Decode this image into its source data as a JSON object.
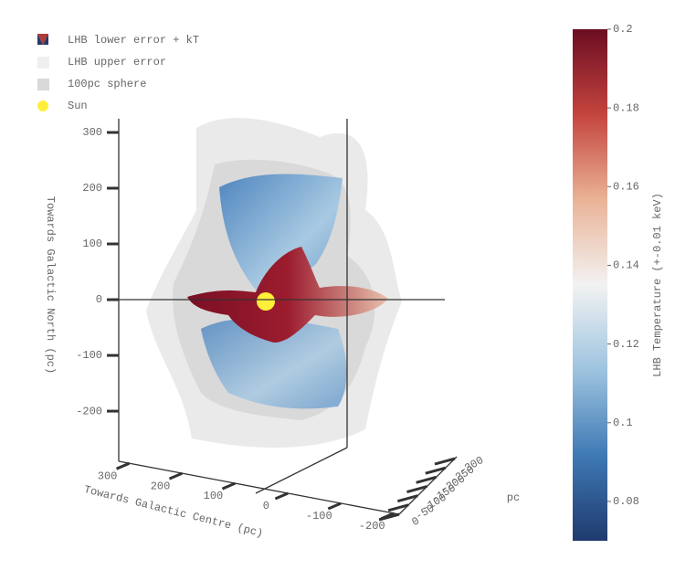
{
  "chart_data": {
    "type": "surface3d",
    "legend": [
      {
        "name": "LHB lower error + kT"
      },
      {
        "name": "LHB upper error"
      },
      {
        "name": "100pc sphere"
      },
      {
        "name": "Sun",
        "color": "#ffef3a"
      }
    ],
    "zaxis": {
      "title": "Towards Galactic North (pc)",
      "lim": [
        -290,
        300
      ],
      "ticks": [
        -200,
        -100,
        0,
        100,
        200,
        300
      ]
    },
    "xaxis": {
      "title": "Towards Galactic Centre (pc)",
      "lim": [
        320,
        -210
      ],
      "ticks": [
        300,
        200,
        100,
        0,
        -100,
        -200
      ]
    },
    "yaxis": {
      "title": "pc",
      "lim": [
        0,
        -310
      ],
      "ticks": [
        0,
        -50,
        -100,
        -150,
        -200,
        -250,
        -300
      ]
    },
    "colorbar": {
      "title": "LHB Temperature (+-0.01 keV)",
      "lim": [
        0.07,
        0.2
      ],
      "ticks": [
        0.08,
        0.1,
        0.12,
        0.14,
        0.16,
        0.18,
        0.2
      ],
      "colors": [
        "#1f3a6e",
        "#3f79b4",
        "#9dc4df",
        "#f2f2f2",
        "#eab396",
        "#c4443e",
        "#6b0d22"
      ]
    }
  }
}
